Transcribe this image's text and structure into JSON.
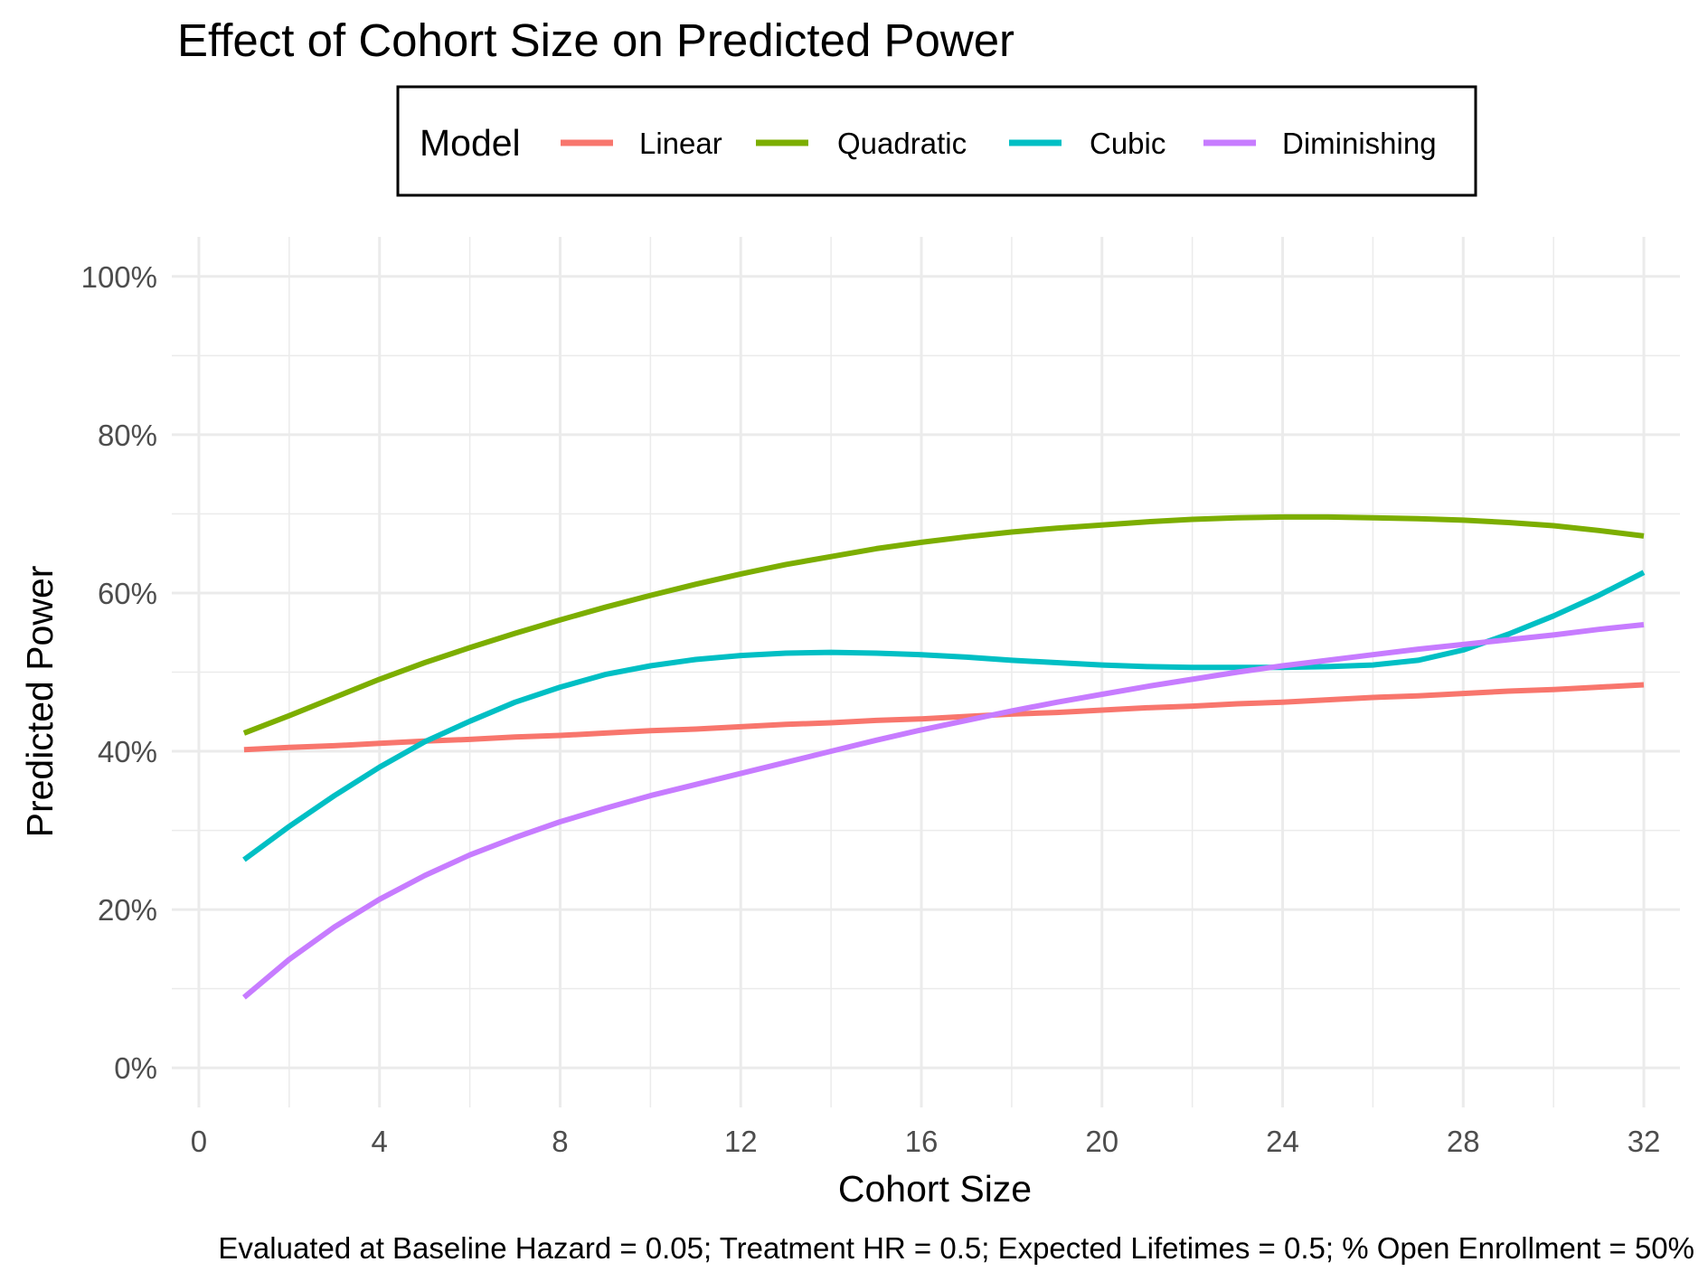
{
  "chart_data": {
    "type": "line",
    "title": "Effect of Cohort Size on Predicted Power",
    "xlabel": "Cohort Size",
    "ylabel": "Predicted Power",
    "caption": "Evaluated at Baseline Hazard = 0.05; Treatment HR = 0.5; Expected Lifetimes = 0.5; % Open Enrollment = 50%",
    "xlim": [
      -0.6,
      32.8
    ],
    "ylim": [
      -0.05,
      1.05
    ],
    "x_ticks": [
      0,
      4,
      8,
      12,
      16,
      20,
      24,
      28,
      32
    ],
    "x_tick_labels": [
      "0",
      "4",
      "8",
      "12",
      "16",
      "20",
      "24",
      "28",
      "32"
    ],
    "y_ticks": [
      0,
      0.2,
      0.4,
      0.6,
      0.8,
      1.0
    ],
    "y_tick_labels": [
      "0%",
      "20%",
      "40%",
      "60%",
      "80%",
      "100%"
    ],
    "grid": true,
    "legend": {
      "title": "Model",
      "placement": "top"
    },
    "x": [
      1,
      2,
      3,
      4,
      5,
      6,
      7,
      8,
      9,
      10,
      11,
      12,
      13,
      14,
      15,
      16,
      17,
      18,
      19,
      20,
      21,
      22,
      23,
      24,
      25,
      26,
      27,
      28,
      29,
      30,
      31,
      32
    ],
    "series": [
      {
        "name": "Linear",
        "color": "#F8766D",
        "values": [
          0.402,
          0.405,
          0.407,
          0.41,
          0.413,
          0.415,
          0.418,
          0.42,
          0.423,
          0.426,
          0.428,
          0.431,
          0.434,
          0.436,
          0.439,
          0.441,
          0.444,
          0.447,
          0.449,
          0.452,
          0.455,
          0.457,
          0.46,
          0.462,
          0.465,
          0.468,
          0.47,
          0.473,
          0.476,
          0.478,
          0.481,
          0.484
        ]
      },
      {
        "name": "Quadratic",
        "color": "#7CAE00",
        "values": [
          0.423,
          0.445,
          0.468,
          0.491,
          0.512,
          0.531,
          0.549,
          0.566,
          0.582,
          0.597,
          0.611,
          0.624,
          0.636,
          0.646,
          0.656,
          0.664,
          0.671,
          0.677,
          0.682,
          0.686,
          0.69,
          0.693,
          0.695,
          0.696,
          0.696,
          0.695,
          0.694,
          0.692,
          0.689,
          0.685,
          0.679,
          0.672
        ]
      },
      {
        "name": "Cubic",
        "color": "#00BFC4",
        "values": [
          0.263,
          0.305,
          0.344,
          0.38,
          0.412,
          0.438,
          0.462,
          0.481,
          0.497,
          0.508,
          0.516,
          0.521,
          0.524,
          0.525,
          0.524,
          0.522,
          0.519,
          0.515,
          0.512,
          0.509,
          0.507,
          0.506,
          0.506,
          0.506,
          0.507,
          0.509,
          0.515,
          0.528,
          0.548,
          0.571,
          0.597,
          0.626
        ]
      },
      {
        "name": "Diminishing",
        "color": "#C77CFF",
        "values": [
          0.089,
          0.137,
          0.178,
          0.213,
          0.243,
          0.269,
          0.291,
          0.311,
          0.328,
          0.344,
          0.358,
          0.372,
          0.386,
          0.4,
          0.414,
          0.427,
          0.439,
          0.451,
          0.462,
          0.472,
          0.482,
          0.491,
          0.5,
          0.508,
          0.515,
          0.522,
          0.529,
          0.535,
          0.541,
          0.547,
          0.554,
          0.56
        ]
      }
    ]
  }
}
